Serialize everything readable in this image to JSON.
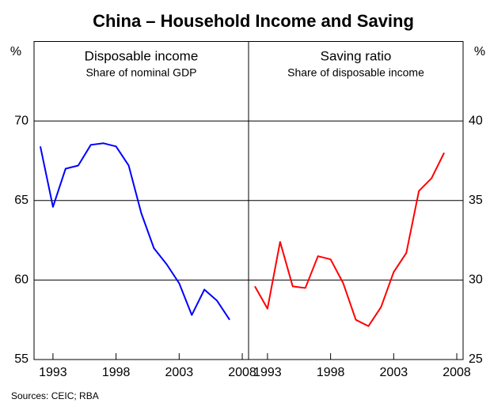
{
  "title": "China – Household Income and Saving",
  "source": "Sources: CEIC; RBA",
  "chart_data": [
    {
      "type": "line",
      "title": "Disposable income",
      "subtitle": "Share of nominal GDP",
      "y_label": "%",
      "x": [
        1992,
        1993,
        1994,
        1995,
        1996,
        1997,
        1998,
        1999,
        2000,
        2001,
        2002,
        2003,
        2004,
        2005,
        2006,
        2007
      ],
      "series": [
        {
          "name": "Disposable income",
          "color": "#0000ff",
          "values": [
            68.4,
            64.6,
            67.0,
            67.2,
            68.5,
            68.6,
            68.4,
            67.2,
            64.2,
            62.0,
            61.0,
            59.8,
            57.8,
            59.4,
            58.7,
            57.5
          ]
        }
      ],
      "xlim": [
        1991.5,
        2008.5
      ],
      "xticks": [
        1993,
        1998,
        2003,
        2008
      ],
      "ylim": [
        55,
        75
      ],
      "yticks": [
        55,
        60,
        65,
        70
      ],
      "grid": true,
      "y_axis_side": "left"
    },
    {
      "type": "line",
      "title": "Saving ratio",
      "subtitle": "Share of disposable income",
      "y_label": "%",
      "x": [
        1992,
        1993,
        1994,
        1995,
        1996,
        1997,
        1998,
        1999,
        2000,
        2001,
        2002,
        2003,
        2004,
        2005,
        2006,
        2007
      ],
      "series": [
        {
          "name": "Saving ratio",
          "color": "#ff0000",
          "values": [
            29.6,
            28.2,
            32.4,
            29.6,
            29.5,
            31.5,
            31.3,
            29.8,
            27.5,
            27.1,
            28.3,
            30.5,
            31.7,
            35.6,
            36.4,
            38.0
          ]
        }
      ],
      "xlim": [
        1991.5,
        2008.5
      ],
      "xticks": [
        1993,
        1998,
        2003,
        2008
      ],
      "ylim": [
        25,
        45
      ],
      "yticks": [
        25,
        30,
        35,
        40
      ],
      "grid": true,
      "y_axis_side": "right"
    }
  ]
}
